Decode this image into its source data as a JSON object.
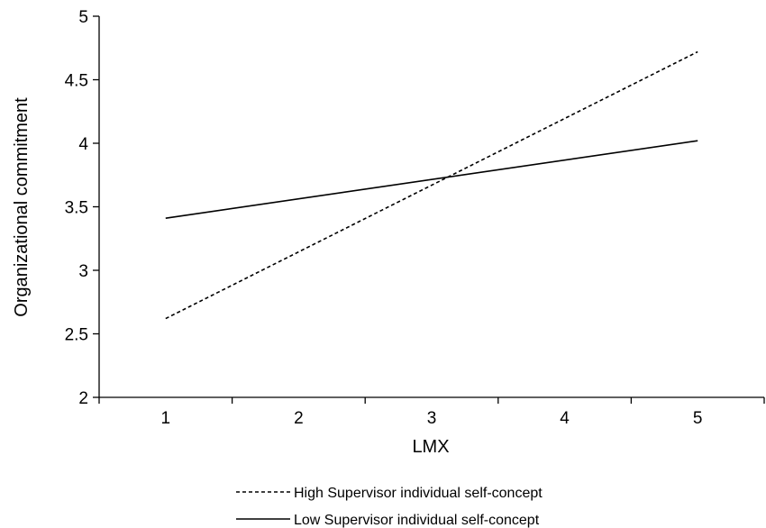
{
  "chart_data": {
    "type": "line",
    "title": "",
    "xlabel": "LMX",
    "ylabel": "Organizational commitment",
    "x": [
      1,
      5
    ],
    "xticks": [
      "1",
      "2",
      "3",
      "4",
      "5"
    ],
    "yticks": [
      "2",
      "2.5",
      "3",
      "3.5",
      "4",
      "4.5",
      "5"
    ],
    "xlim": [
      0.5,
      5.5
    ],
    "ylim": [
      2,
      5
    ],
    "grid": false,
    "legend_position": "bottom-center",
    "series": [
      {
        "name": "High Supervisor individual self-concept",
        "style": "dashed",
        "color": "#000000",
        "values": [
          2.62,
          4.72
        ]
      },
      {
        "name": "Low Supervisor individual self-concept",
        "style": "solid",
        "color": "#000000",
        "values": [
          3.41,
          4.02
        ]
      }
    ]
  }
}
